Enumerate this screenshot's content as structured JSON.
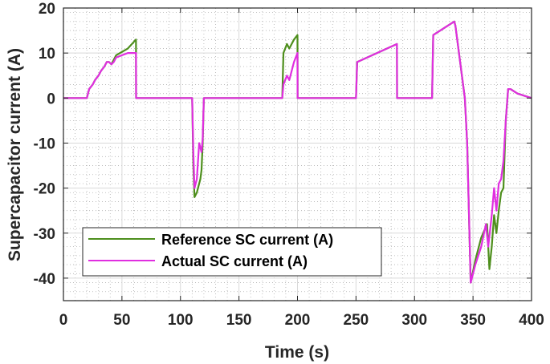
{
  "chart_data": {
    "type": "line",
    "title": "",
    "xlabel": "Time (s)",
    "ylabel": "Supercapacitor current (A)",
    "xlim": [
      0,
      400
    ],
    "ylim": [
      -45,
      20
    ],
    "xticks": [
      0,
      50,
      100,
      150,
      200,
      250,
      300,
      350,
      400
    ],
    "yticks": [
      20,
      10,
      0,
      -10,
      -20,
      -30,
      -40
    ],
    "grid": true,
    "minor_grid": true,
    "legend_position": "bottom-left",
    "series": [
      {
        "name": "Reference SC current (A)",
        "color": "#4e8f1d",
        "x": [
          0,
          20,
          22,
          25,
          27,
          30,
          32,
          35,
          37,
          39,
          41,
          43,
          45,
          55,
          62,
          62.1,
          110,
          111,
          112,
          114,
          117,
          118,
          119,
          120,
          187,
          188,
          191,
          193,
          197,
          200,
          200.1,
          250,
          251,
          285,
          285.1,
          315,
          316,
          334,
          335,
          343,
          345,
          348,
          352,
          357,
          362,
          364,
          366,
          368,
          370,
          372,
          374,
          376,
          378,
          380,
          382,
          388,
          400
        ],
        "y": [
          0,
          0,
          2,
          3,
          4,
          5,
          6,
          7,
          8,
          8,
          7.5,
          8.5,
          9.5,
          11,
          13,
          0,
          0,
          -15,
          -22,
          -21,
          -18,
          -16,
          -10,
          0,
          0,
          10,
          12,
          11,
          13,
          14,
          0,
          0,
          8,
          12,
          0,
          0,
          14,
          17,
          16,
          0,
          -10,
          -41,
          -36,
          -31,
          -28,
          -38,
          -33,
          -26,
          -30,
          -25,
          -21,
          -20,
          -5,
          2,
          2,
          1,
          0
        ]
      },
      {
        "name": "Actual SC current (A)",
        "color": "#e02ee0",
        "x": [
          0,
          20,
          22,
          25,
          27,
          30,
          32,
          35,
          37,
          39,
          41,
          43,
          45,
          55,
          62,
          62.1,
          110,
          111,
          112,
          114,
          116,
          118,
          119,
          120,
          187,
          188,
          191,
          193,
          197,
          200,
          200.1,
          250,
          251,
          285,
          285.1,
          315,
          316,
          334,
          335,
          343,
          345,
          348,
          352,
          357,
          361,
          363,
          366,
          368,
          370,
          372,
          374,
          376,
          378,
          380,
          382,
          388,
          400
        ],
        "y": [
          0,
          0,
          2,
          3,
          4,
          5,
          6,
          7,
          8,
          8,
          7.5,
          8,
          9,
          10,
          10,
          0,
          0,
          -12,
          -20,
          -18,
          -10,
          -12,
          -9,
          0,
          0,
          3,
          5,
          4,
          8,
          10,
          0,
          0,
          8,
          12,
          0,
          0,
          14,
          17,
          16,
          0,
          -10,
          -41,
          -37,
          -33,
          -28,
          -33,
          -26,
          -20,
          -25,
          -19,
          -18,
          -14,
          -5,
          2,
          2,
          1,
          0
        ]
      }
    ]
  }
}
